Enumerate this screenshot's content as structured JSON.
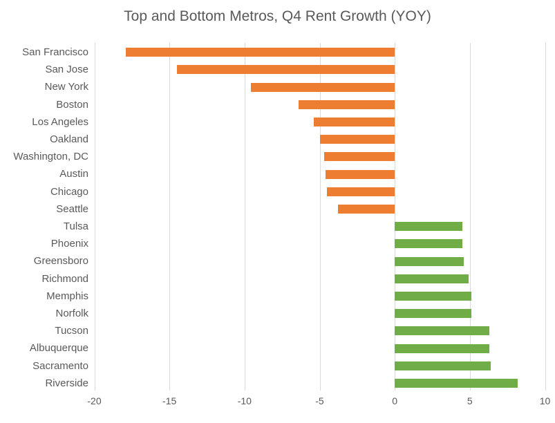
{
  "chart_data": {
    "type": "bar",
    "orientation": "horizontal",
    "title": "Top and Bottom Metros, Q4 Rent Growth (YOY)",
    "xlabel": "",
    "ylabel": "",
    "xlim": [
      -20,
      10
    ],
    "xticks": [
      -20,
      -15,
      -10,
      -5,
      0,
      5,
      10
    ],
    "xtick_labels": [
      "-20",
      "-15",
      "-10",
      "-5",
      "0",
      "5",
      "10"
    ],
    "grid": "vertical",
    "legend": "none",
    "categories": [
      "San Francisco",
      "San Jose",
      "New York",
      "Boston",
      "Los Angeles",
      "Oakland",
      "Washington, DC",
      "Austin",
      "Chicago",
      "Seattle",
      "Tulsa",
      "Phoenix",
      "Greensboro",
      "Richmond",
      "Memphis",
      "Norfolk",
      "Tucson",
      "Albuquerque",
      "Sacramento",
      "Riverside"
    ],
    "values": [
      -17.9,
      -14.5,
      -9.6,
      -6.4,
      -5.4,
      -5.0,
      -4.7,
      -4.6,
      -4.5,
      -3.8,
      4.5,
      4.5,
      4.6,
      4.9,
      5.1,
      5.1,
      6.3,
      6.3,
      6.4,
      8.2
    ],
    "colors": {
      "negative_bar": "#ED7D31",
      "positive_bar": "#70AD47",
      "gridline": "#d9d9d9",
      "text": "#595959",
      "background": "#ffffff"
    }
  }
}
